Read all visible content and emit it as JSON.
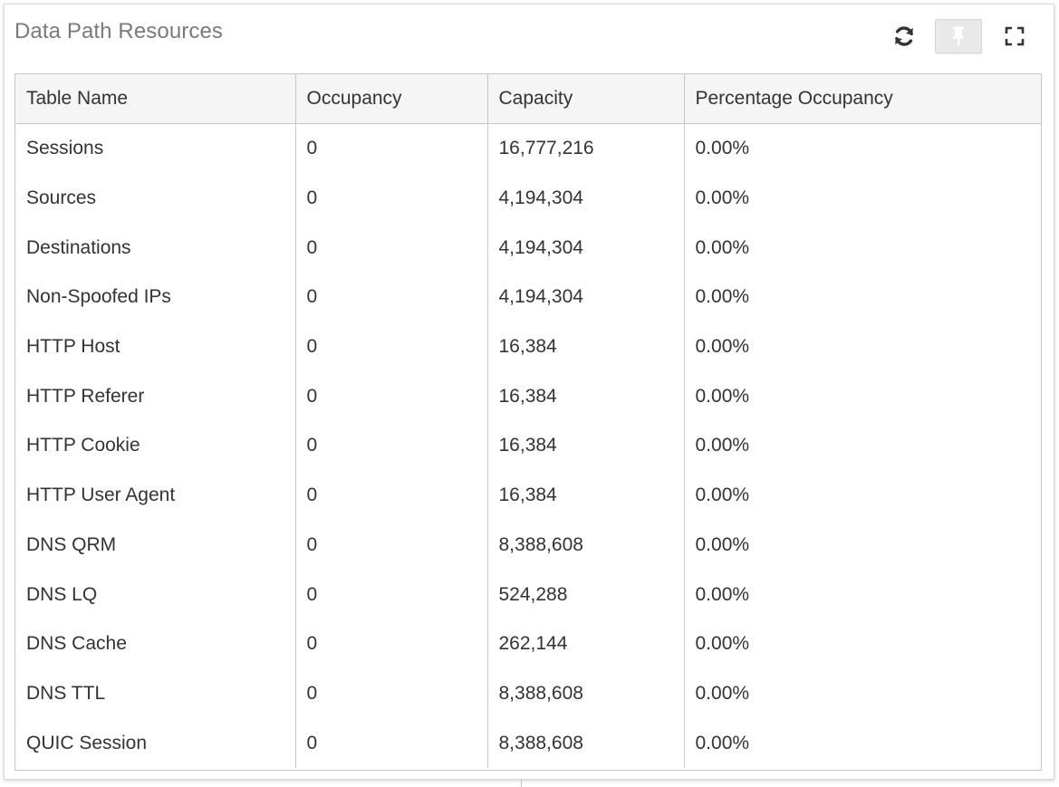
{
  "panel": {
    "title": "Data Path Resources",
    "toolbar": {
      "refresh_icon": "refresh-icon",
      "pin_icon": "pin-icon",
      "fullscreen_icon": "fullscreen-icon"
    }
  },
  "table": {
    "columns": [
      "Table Name",
      "Occupancy",
      "Capacity",
      "Percentage Occupancy"
    ],
    "rows": [
      [
        "Sessions",
        "0",
        "16,777,216",
        "0.00%"
      ],
      [
        "Sources",
        "0",
        "4,194,304",
        "0.00%"
      ],
      [
        "Destinations",
        "0",
        "4,194,304",
        "0.00%"
      ],
      [
        "Non-Spoofed IPs",
        "0",
        "4,194,304",
        "0.00%"
      ],
      [
        "HTTP Host",
        "0",
        "16,384",
        "0.00%"
      ],
      [
        "HTTP Referer",
        "0",
        "16,384",
        "0.00%"
      ],
      [
        "HTTP Cookie",
        "0",
        "16,384",
        "0.00%"
      ],
      [
        "HTTP User Agent",
        "0",
        "16,384",
        "0.00%"
      ],
      [
        "DNS QRM",
        "0",
        "8,388,608",
        "0.00%"
      ],
      [
        "DNS LQ",
        "0",
        "524,288",
        "0.00%"
      ],
      [
        "DNS Cache",
        "0",
        "262,144",
        "0.00%"
      ],
      [
        "DNS TTL",
        "0",
        "8,388,608",
        "0.00%"
      ],
      [
        "QUIC Session",
        "0",
        "8,388,608",
        "0.00%"
      ]
    ]
  },
  "colors": {
    "title": "#7a7a7a",
    "text": "#333333",
    "border": "#c8c8c8",
    "header_bg": "#f5f5f5",
    "pin_bg": "#e9e9e9"
  }
}
